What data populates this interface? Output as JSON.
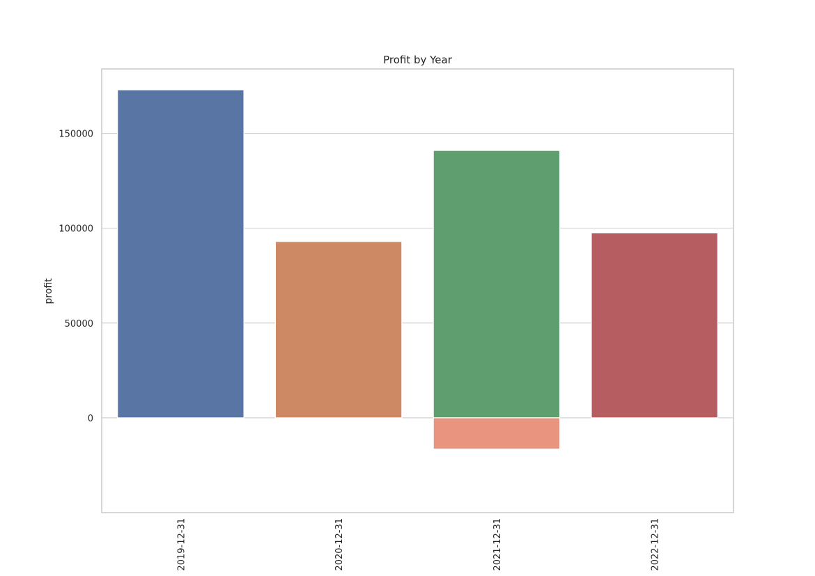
{
  "chart_data": {
    "type": "bar",
    "title": "Profit by Year",
    "xlabel": "",
    "ylabel": "profit",
    "categories": [
      "2019-12-31",
      "2020-12-31",
      "2021-12-31",
      "2022-12-31"
    ],
    "ylim": [
      -50000,
      184000
    ],
    "yticks": [
      0,
      50000,
      100000,
      150000
    ],
    "grid": true,
    "bars": [
      {
        "category": "2019-12-31",
        "value": 173000,
        "color": "#5875a4"
      },
      {
        "category": "2020-12-31",
        "value": 93000,
        "color": "#cc8963"
      },
      {
        "category": "2021-12-31",
        "value": 141000,
        "color": "#5f9e6e"
      },
      {
        "category": "2021-12-31",
        "value": -16500,
        "color": "#e8947f"
      },
      {
        "category": "2022-12-31",
        "value": 97500,
        "color": "#b55d60"
      }
    ]
  }
}
